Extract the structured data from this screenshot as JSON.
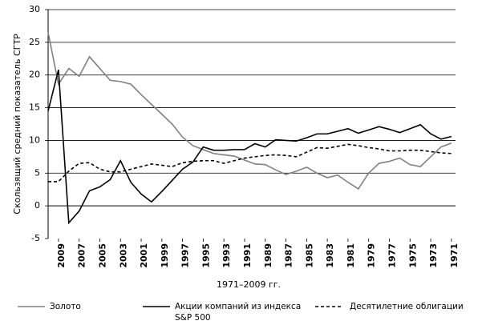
{
  "chart_data": {
    "type": "line",
    "ylabel": "Скользящий средний показатель СГТР",
    "xlabel": "1971–2009 гг.",
    "x": [
      2010,
      2009,
      2008,
      2007,
      2006,
      2005,
      2004,
      2003,
      2002,
      2001,
      2000,
      1999,
      1998,
      1997,
      1996,
      1995,
      1994,
      1993,
      1992,
      1991,
      1990,
      1989,
      1988,
      1987,
      1986,
      1985,
      1984,
      1983,
      1982,
      1981,
      1980,
      1979,
      1978,
      1977,
      1976,
      1975,
      1974,
      1973,
      1972,
      1971
    ],
    "xlim": [
      2010,
      1970.6
    ],
    "xticks": [
      2009,
      2007,
      2005,
      2003,
      2001,
      1999,
      1997,
      1995,
      1993,
      1991,
      1989,
      1987,
      1985,
      1983,
      1981,
      1979,
      1977,
      1975,
      1973,
      1971
    ],
    "ylim": [
      -5,
      30
    ],
    "yticks": [
      -5,
      0,
      5,
      10,
      15,
      20,
      25,
      30
    ],
    "grid": true,
    "legend": "bottom",
    "series": [
      {
        "name": "Золото",
        "color": "#808080",
        "style": "solid",
        "values": [
          26.5,
          18.6,
          21,
          19.8,
          22.8,
          21,
          19.2,
          19,
          18.6,
          17,
          15.5,
          14,
          12.5,
          10.5,
          9.2,
          8.6,
          8,
          7.8,
          7.6,
          7.0,
          6.4,
          6.3,
          5.5,
          4.8,
          5.3,
          5.9,
          5.0,
          4.3,
          4.7,
          3.6,
          2.6,
          5.0,
          6.5,
          6.8,
          7.3,
          6.3,
          6.0,
          7.5,
          9.0,
          9.6
        ]
      },
      {
        "name": "Акции компаний из индекса S&P 500",
        "color": "#000000",
        "style": "solid",
        "values": [
          14.5,
          20.8,
          -2.6,
          -0.8,
          2.3,
          2.9,
          4.0,
          6.9,
          3.6,
          1.8,
          0.6,
          2.2,
          3.9,
          5.6,
          6.7,
          9.0,
          8.5,
          8.5,
          8.6,
          8.6,
          9.5,
          9.0,
          10.1,
          10.0,
          9.9,
          10.4,
          11.0,
          11.0,
          11.4,
          11.8,
          11.1,
          11.6,
          12.1,
          11.7,
          11.2,
          11.8,
          12.4,
          11.0,
          10.2,
          10.6
        ]
      },
      {
        "name": "Десятилетние облигации",
        "color": "#000000",
        "style": "dashed",
        "values": [
          3.7,
          3.7,
          5.3,
          6.5,
          6.6,
          5.6,
          5.2,
          5.2,
          5.6,
          6.0,
          6.4,
          6.2,
          6.0,
          6.6,
          6.8,
          6.9,
          6.9,
          6.5,
          6.9,
          7.3,
          7.5,
          7.7,
          7.8,
          7.7,
          7.5,
          8.2,
          8.9,
          8.8,
          9.1,
          9.4,
          9.2,
          8.9,
          8.7,
          8.4,
          8.4,
          8.5,
          8.5,
          8.3,
          8.1,
          8.0
        ]
      }
    ]
  }
}
